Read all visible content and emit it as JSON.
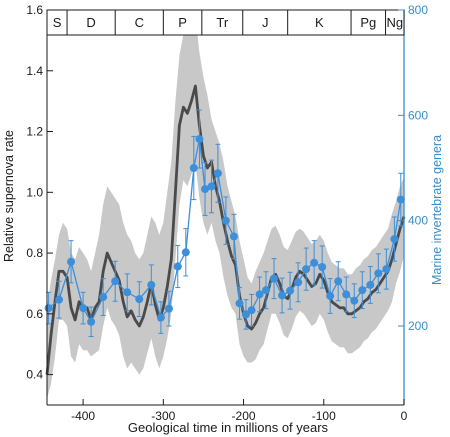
{
  "chart_data": {
    "type": "line",
    "xlabel": "Geological time in millions of years",
    "ylabel_left": "Relative supernova rate",
    "ylabel_right": "Marine invertebrate genera",
    "xlim": [
      -445,
      0
    ],
    "ylim_left": [
      0.3,
      1.6
    ],
    "ylim_right": [
      50,
      800
    ],
    "x_ticks": [
      -400,
      -300,
      -200,
      -100,
      0
    ],
    "y_ticks_left": [
      0.4,
      0.6,
      0.8,
      1.0,
      1.2,
      1.4,
      1.6
    ],
    "y_ticks_right": [
      200,
      400,
      600,
      800
    ],
    "x_tick_labels": [
      "-400",
      "-300",
      "-200",
      "-100",
      "0"
    ],
    "y_tick_labels_left": [
      "0.4",
      "0.6",
      "0.8",
      "1.0",
      "1.2",
      "1.4",
      "1.6"
    ],
    "y_tick_labels_right": [
      "200",
      "400",
      "600",
      "800"
    ],
    "colors": {
      "supernova_line": "#4a4a4a",
      "uncertainty_band": "#c8c8c8",
      "genera_series": "#3d8fd9",
      "right_axis": "#3a8ec8",
      "axis": "#1a1a1a"
    },
    "periods": [
      {
        "label": "S",
        "start": -445,
        "end": -420
      },
      {
        "label": "D",
        "start": -420,
        "end": -360
      },
      {
        "label": "C",
        "start": -360,
        "end": -300
      },
      {
        "label": "P",
        "start": -300,
        "end": -252
      },
      {
        "label": "Tr",
        "start": -252,
        "end": -201
      },
      {
        "label": "J",
        "start": -201,
        "end": -145
      },
      {
        "label": "K",
        "start": -145,
        "end": -66
      },
      {
        "label": "Pg",
        "start": -66,
        "end": -23
      },
      {
        "label": "Ng",
        "start": -23,
        "end": 0
      }
    ],
    "series": [
      {
        "kind": "supernova_rate",
        "axis": "left",
        "x": [
          -445,
          -440,
          -435,
          -430,
          -425,
          -420,
          -415,
          -410,
          -405,
          -400,
          -395,
          -390,
          -385,
          -380,
          -375,
          -370,
          -365,
          -360,
          -355,
          -350,
          -345,
          -340,
          -335,
          -330,
          -325,
          -320,
          -315,
          -310,
          -305,
          -300,
          -295,
          -290,
          -285,
          -280,
          -275,
          -270,
          -265,
          -260,
          -255,
          -250,
          -245,
          -240,
          -235,
          -230,
          -225,
          -220,
          -215,
          -210,
          -205,
          -200,
          -195,
          -190,
          -185,
          -180,
          -175,
          -170,
          -165,
          -160,
          -155,
          -150,
          -145,
          -140,
          -135,
          -130,
          -125,
          -120,
          -115,
          -110,
          -105,
          -100,
          -95,
          -90,
          -85,
          -80,
          -75,
          -70,
          -65,
          -60,
          -55,
          -50,
          -45,
          -40,
          -35,
          -30,
          -25,
          -20,
          -15,
          -10,
          -5,
          0
        ],
        "values": [
          0.4,
          0.53,
          0.64,
          0.74,
          0.74,
          0.72,
          0.62,
          0.58,
          0.64,
          0.61,
          0.62,
          0.58,
          0.62,
          0.64,
          0.74,
          0.8,
          0.77,
          0.74,
          0.71,
          0.64,
          0.59,
          0.61,
          0.58,
          0.56,
          0.59,
          0.64,
          0.7,
          0.63,
          0.58,
          0.62,
          0.69,
          0.78,
          1.0,
          1.22,
          1.28,
          1.26,
          1.3,
          1.35,
          1.22,
          1.12,
          1.08,
          1.1,
          1.02,
          0.97,
          0.9,
          0.84,
          0.79,
          0.76,
          0.66,
          0.6,
          0.56,
          0.55,
          0.57,
          0.6,
          0.62,
          0.67,
          0.72,
          0.73,
          0.7,
          0.66,
          0.65,
          0.68,
          0.72,
          0.74,
          0.73,
          0.71,
          0.69,
          0.7,
          0.73,
          0.71,
          0.67,
          0.64,
          0.63,
          0.62,
          0.62,
          0.6,
          0.6,
          0.61,
          0.62,
          0.64,
          0.65,
          0.67,
          0.68,
          0.7,
          0.72,
          0.74,
          0.78,
          0.83,
          0.88,
          0.92
        ]
      },
      {
        "kind": "uncertainty_band",
        "axis": "left",
        "x": [
          -445,
          -440,
          -435,
          -430,
          -425,
          -420,
          -415,
          -410,
          -405,
          -400,
          -395,
          -390,
          -385,
          -380,
          -375,
          -370,
          -365,
          -360,
          -355,
          -350,
          -345,
          -340,
          -335,
          -330,
          -325,
          -320,
          -315,
          -310,
          -305,
          -300,
          -295,
          -290,
          -285,
          -280,
          -275,
          -270,
          -265,
          -260,
          -255,
          -250,
          -245,
          -240,
          -235,
          -230,
          -225,
          -220,
          -215,
          -210,
          -205,
          -200,
          -195,
          -190,
          -185,
          -180,
          -175,
          -170,
          -165,
          -160,
          -155,
          -150,
          -145,
          -140,
          -135,
          -130,
          -125,
          -120,
          -115,
          -110,
          -105,
          -100,
          -95,
          -90,
          -85,
          -80,
          -75,
          -70,
          -65,
          -60,
          -55,
          -50,
          -45,
          -40,
          -35,
          -30,
          -25,
          -20,
          -15,
          -10,
          -5,
          0
        ],
        "upper": [
          0.62,
          0.71,
          0.78,
          0.86,
          0.9,
          0.88,
          0.8,
          0.78,
          0.82,
          0.8,
          0.78,
          0.74,
          0.8,
          0.86,
          0.96,
          1.02,
          1.0,
          0.98,
          0.96,
          0.9,
          0.86,
          0.84,
          0.8,
          0.78,
          0.8,
          0.86,
          0.92,
          0.9,
          0.86,
          0.9,
          1.0,
          1.1,
          1.3,
          1.45,
          1.52,
          1.55,
          1.57,
          1.58,
          1.46,
          1.38,
          1.32,
          1.24,
          1.2,
          1.16,
          1.1,
          1.02,
          0.97,
          0.92,
          0.84,
          0.78,
          0.72,
          0.7,
          0.74,
          0.77,
          0.8,
          0.84,
          0.88,
          0.89,
          0.86,
          0.82,
          0.81,
          0.84,
          0.87,
          0.88,
          0.87,
          0.85,
          0.83,
          0.84,
          0.86,
          0.84,
          0.8,
          0.77,
          0.76,
          0.75,
          0.75,
          0.73,
          0.73,
          0.75,
          0.76,
          0.78,
          0.79,
          0.81,
          0.82,
          0.84,
          0.86,
          0.88,
          0.93,
          0.97,
          1.02,
          1.05
        ],
        "lower": [
          0.32,
          0.37,
          0.46,
          0.58,
          0.58,
          0.56,
          0.46,
          0.44,
          0.5,
          0.48,
          0.48,
          0.46,
          0.47,
          0.48,
          0.56,
          0.62,
          0.58,
          0.56,
          0.53,
          0.46,
          0.42,
          0.44,
          0.42,
          0.4,
          0.42,
          0.47,
          0.52,
          0.46,
          0.42,
          0.46,
          0.52,
          0.6,
          0.78,
          0.96,
          1.04,
          1.02,
          1.06,
          1.1,
          0.98,
          0.9,
          0.86,
          0.9,
          0.84,
          0.8,
          0.72,
          0.66,
          0.62,
          0.6,
          0.5,
          0.46,
          0.44,
          0.44,
          0.45,
          0.48,
          0.5,
          0.55,
          0.6,
          0.6,
          0.57,
          0.53,
          0.52,
          0.55,
          0.59,
          0.61,
          0.6,
          0.58,
          0.56,
          0.57,
          0.6,
          0.58,
          0.54,
          0.51,
          0.5,
          0.49,
          0.49,
          0.47,
          0.47,
          0.48,
          0.49,
          0.51,
          0.52,
          0.54,
          0.55,
          0.57,
          0.59,
          0.61,
          0.64,
          0.7,
          0.74,
          0.79
        ]
      },
      {
        "kind": "marine_genera",
        "axis": "right",
        "x": [
          -443,
          -430,
          -415,
          -400,
          -390,
          -375,
          -360,
          -345,
          -330,
          -315,
          -303,
          -293,
          -282,
          -272,
          -262,
          -255,
          -248,
          -240,
          -232,
          -222,
          -212,
          -205,
          -197,
          -190,
          -180,
          -172,
          -162,
          -152,
          -142,
          -132,
          -122,
          -112,
          -102,
          -92,
          -82,
          -72,
          -62,
          -52,
          -42,
          -32,
          -22,
          -12,
          -4
        ],
        "values": [
          234,
          250,
          322,
          234,
          208,
          255,
          285,
          264,
          251,
          278,
          216,
          233,
          313,
          340,
          500,
          555,
          460,
          465,
          490,
          400,
          370,
          243,
          222,
          230,
          260,
          268,
          290,
          258,
          267,
          283,
          308,
          320,
          312,
          257,
          285,
          260,
          248,
          268,
          278,
          300,
          308,
          365,
          440
        ],
        "errors": [
          30,
          35,
          40,
          30,
          28,
          35,
          38,
          35,
          33,
          38,
          30,
          33,
          40,
          45,
          60,
          55,
          50,
          50,
          55,
          45,
          42,
          30,
          28,
          30,
          33,
          35,
          38,
          33,
          35,
          37,
          40,
          42,
          40,
          33,
          37,
          33,
          32,
          35,
          35,
          37,
          38,
          42,
          50
        ]
      }
    ]
  }
}
